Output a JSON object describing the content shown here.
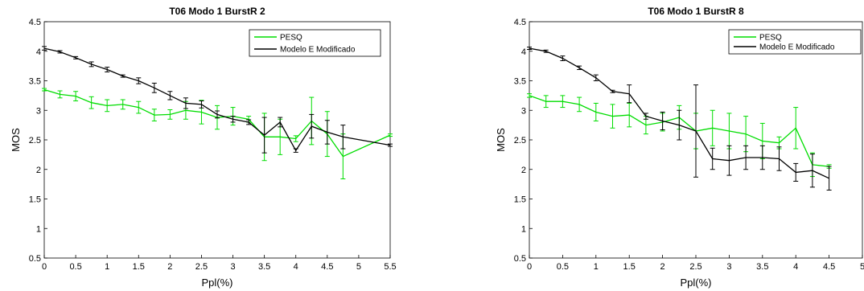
{
  "chart_data": [
    {
      "type": "line",
      "title": "T06 Modo 1 BurstR 2",
      "xlabel": "Ppl(%)",
      "ylabel": "MOS",
      "xlim": [
        0,
        5.5
      ],
      "ylim": [
        0.5,
        4.5
      ],
      "xticks": [
        0,
        0.5,
        1,
        1.5,
        2,
        2.5,
        3,
        3.5,
        4,
        4.5,
        5,
        5.5
      ],
      "xtick_labels": [
        "0",
        "0.5",
        "1",
        "1.5",
        "2",
        "2.5",
        "3",
        "3.5",
        "4",
        "4.5",
        "5",
        "5.5"
      ],
      "yticks": [
        0.5,
        1,
        1.5,
        2,
        2.5,
        3,
        3.5,
        4,
        4.5
      ],
      "ytick_labels": [
        "0.5",
        "1",
        "1.5",
        "2",
        "2.5",
        "3",
        "3.5",
        "4",
        "4.5"
      ],
      "legend_position": "top-right",
      "series": [
        {
          "name": "PESQ",
          "color": "#00dd00",
          "x": [
            0,
            0.25,
            0.5,
            0.75,
            1,
            1.25,
            1.5,
            1.75,
            2,
            2.25,
            2.5,
            2.75,
            3,
            3.25,
            3.5,
            3.75,
            4,
            4.25,
            4.5,
            4.75,
            5.5
          ],
          "y": [
            3.35,
            3.27,
            3.24,
            3.13,
            3.08,
            3.1,
            3.05,
            2.92,
            2.93,
            3.0,
            2.97,
            2.88,
            2.9,
            2.85,
            2.55,
            2.55,
            2.52,
            2.82,
            2.6,
            2.22,
            2.58
          ],
          "err": [
            0.02,
            0.06,
            0.08,
            0.1,
            0.1,
            0.08,
            0.1,
            0.1,
            0.08,
            0.15,
            0.2,
            0.2,
            0.15,
            0.05,
            0.4,
            0.3,
            0.05,
            0.4,
            0.38,
            0.38,
            0.02
          ]
        },
        {
          "name": "Modelo E Modificado",
          "color": "#000000",
          "x": [
            0,
            0.25,
            0.5,
            0.75,
            1,
            1.25,
            1.5,
            1.75,
            2,
            2.25,
            2.5,
            2.75,
            3,
            3.25,
            3.5,
            3.75,
            4,
            4.25,
            4.5,
            4.75,
            5.5
          ],
          "y": [
            4.05,
            3.99,
            3.89,
            3.78,
            3.69,
            3.58,
            3.5,
            3.38,
            3.25,
            3.12,
            3.1,
            2.93,
            2.85,
            2.8,
            2.58,
            2.8,
            2.32,
            2.73,
            2.63,
            2.55,
            2.41
          ],
          "err": [
            0.03,
            0.02,
            0.02,
            0.04,
            0.04,
            0.02,
            0.05,
            0.08,
            0.07,
            0.09,
            0.06,
            0.06,
            0.05,
            0.04,
            0.3,
            0.08,
            0.03,
            0.2,
            0.2,
            0.2,
            0.02
          ]
        }
      ]
    },
    {
      "type": "line",
      "title": "T06 Modo 1 BurstR 8",
      "xlabel": "Ppl(%)",
      "ylabel": "MOS",
      "xlim": [
        0,
        5
      ],
      "ylim": [
        0.5,
        4.5
      ],
      "xticks": [
        0,
        0.5,
        1,
        1.5,
        2,
        2.5,
        3,
        3.5,
        4,
        4.5,
        5
      ],
      "xtick_labels": [
        "0",
        "0.5",
        "1",
        "1.5",
        "2",
        "2.5",
        "3",
        "3.5",
        "4",
        "4.5",
        "5"
      ],
      "yticks": [
        0.5,
        1,
        1.5,
        2,
        2.5,
        3,
        3.5,
        4,
        4.5
      ],
      "ytick_labels": [
        "0.5",
        "1",
        "1.5",
        "2",
        "2.5",
        "3",
        "3.5",
        "4",
        "4.5"
      ],
      "legend_position": "top-right",
      "series": [
        {
          "name": "PESQ",
          "color": "#00dd00",
          "x": [
            0,
            0.25,
            0.5,
            0.75,
            1,
            1.25,
            1.5,
            1.75,
            2,
            2.25,
            2.5,
            2.75,
            3,
            3.25,
            3.5,
            3.75,
            4,
            4.25,
            4.5
          ],
          "y": [
            3.25,
            3.15,
            3.15,
            3.1,
            2.97,
            2.9,
            2.92,
            2.75,
            2.8,
            2.88,
            2.65,
            2.7,
            2.65,
            2.6,
            2.48,
            2.45,
            2.7,
            2.08,
            2.05
          ],
          "err": [
            0.03,
            0.1,
            0.1,
            0.12,
            0.15,
            0.2,
            0.2,
            0.15,
            0.15,
            0.2,
            0.3,
            0.3,
            0.3,
            0.3,
            0.3,
            0.1,
            0.35,
            0.2,
            0.03
          ]
        },
        {
          "name": "Modelo E Modificado",
          "color": "#000000",
          "x": [
            0,
            0.25,
            0.5,
            0.75,
            1,
            1.25,
            1.5,
            1.75,
            2,
            2.25,
            2.5,
            2.75,
            3,
            3.25,
            3.5,
            3.75,
            4,
            4.25,
            4.5
          ],
          "y": [
            4.05,
            4.0,
            3.88,
            3.72,
            3.55,
            3.32,
            3.28,
            2.9,
            2.82,
            2.75,
            2.65,
            2.18,
            2.15,
            2.2,
            2.2,
            2.18,
            1.95,
            1.98,
            1.85
          ],
          "err": [
            0.02,
            0.02,
            0.04,
            0.03,
            0.05,
            0.02,
            0.15,
            0.05,
            0.15,
            0.25,
            0.78,
            0.18,
            0.25,
            0.2,
            0.2,
            0.2,
            0.15,
            0.28,
            0.2
          ]
        }
      ]
    }
  ]
}
